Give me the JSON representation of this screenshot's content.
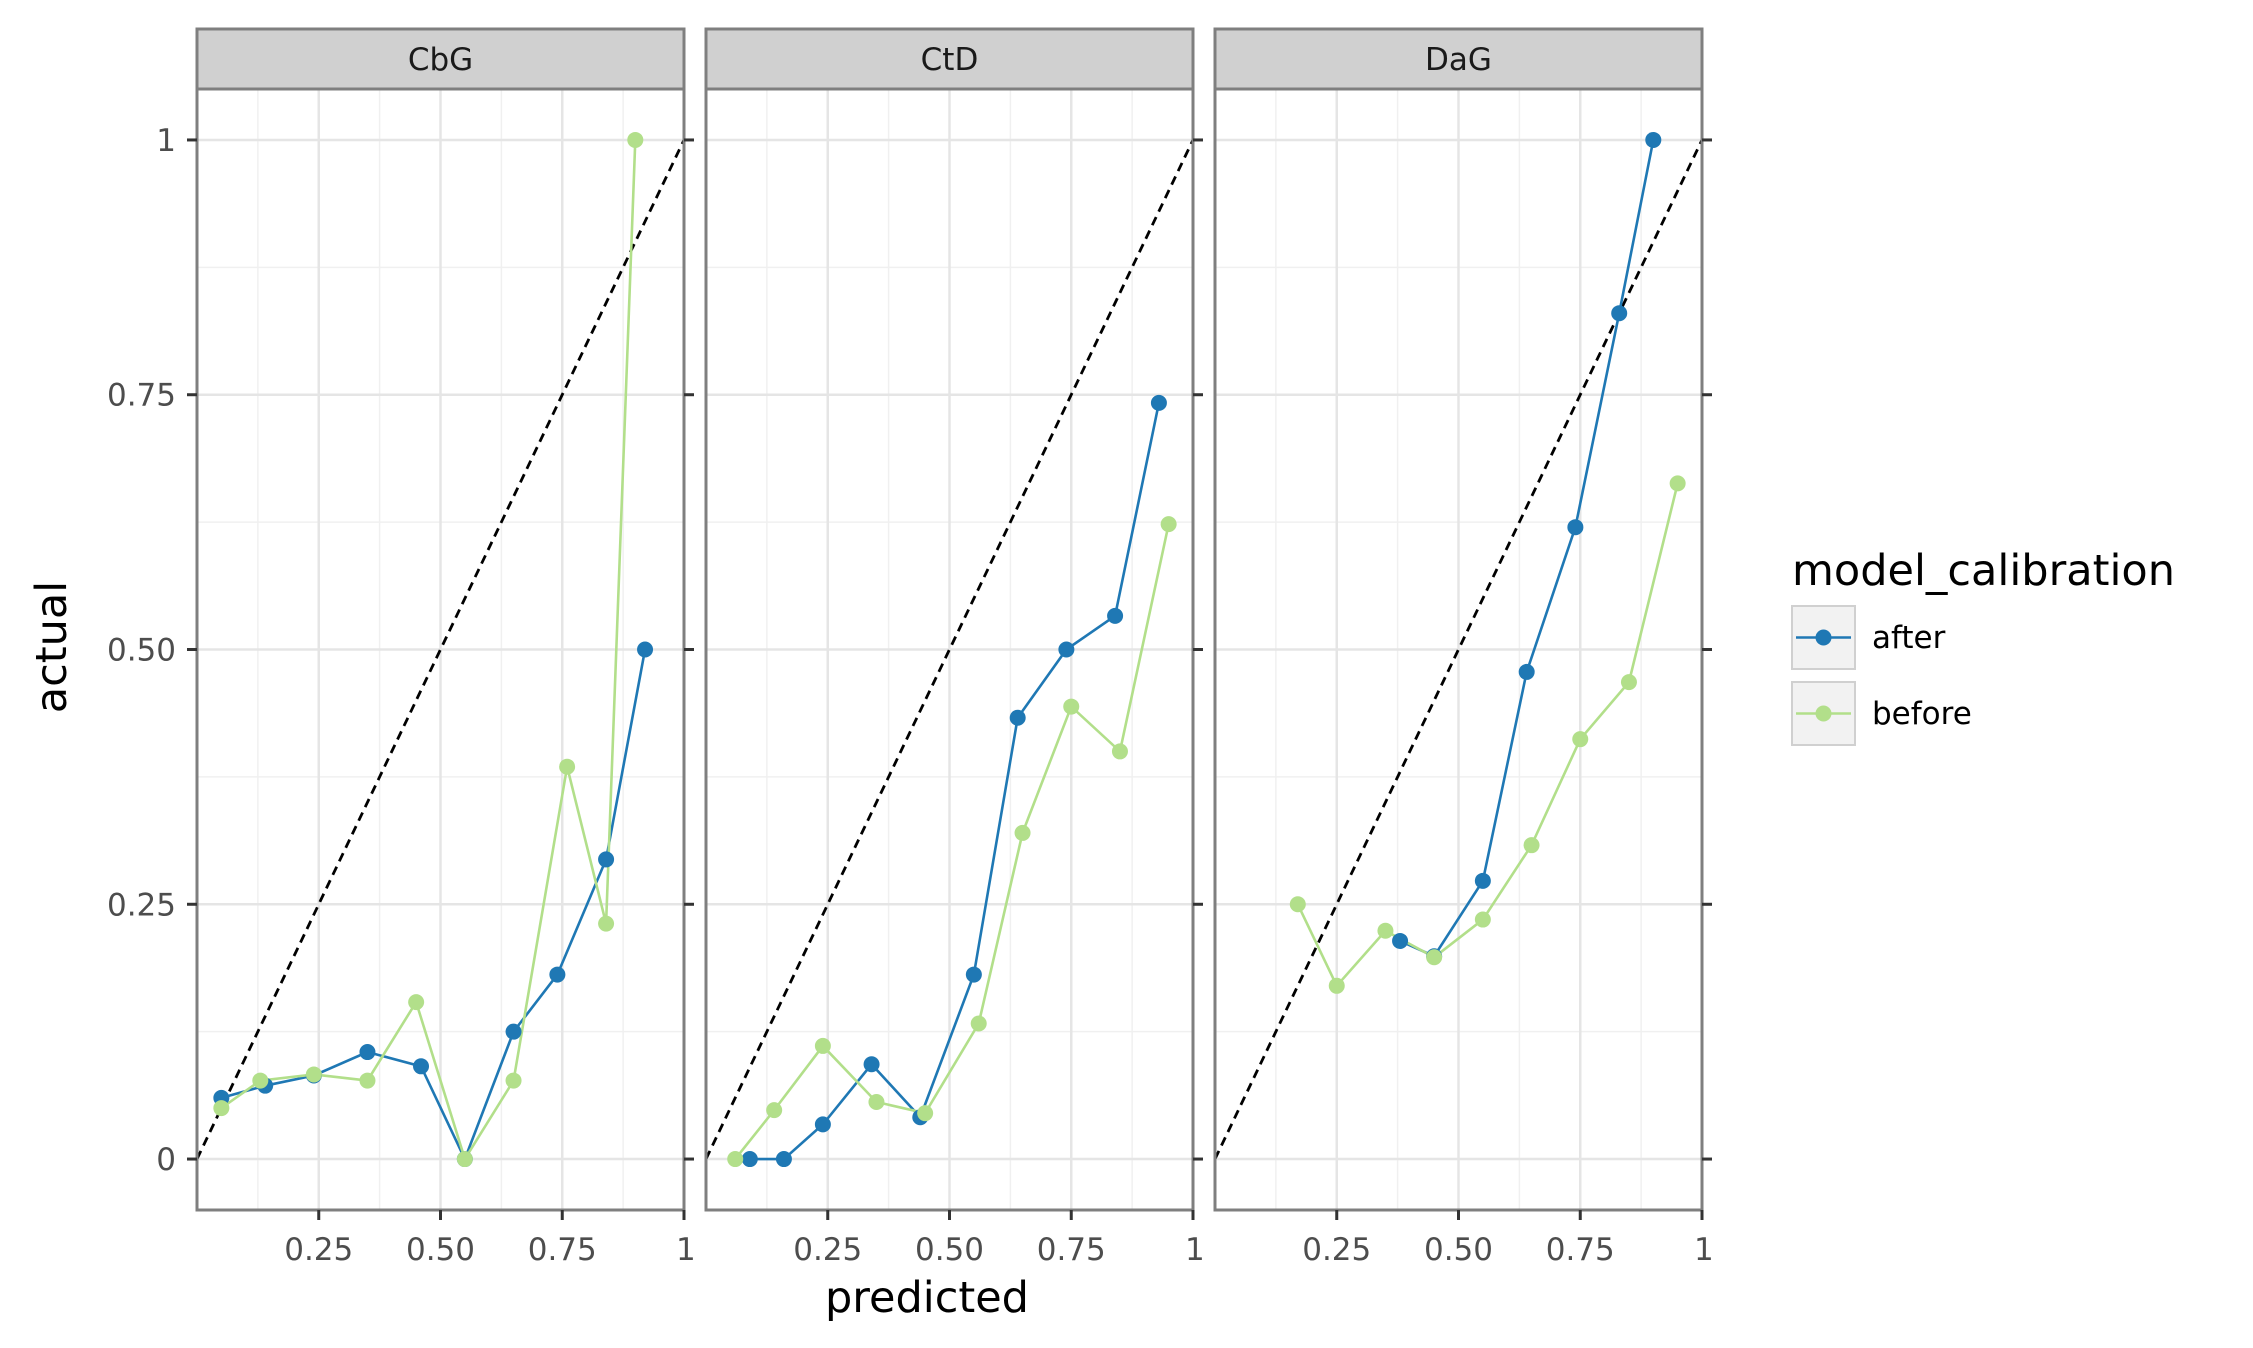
{
  "chart_data": {
    "type": "line",
    "facets": [
      "CbG",
      "CtD",
      "DaG"
    ],
    "xlabel": "predicted",
    "ylabel": "actual",
    "xlim": [
      0,
      1
    ],
    "ylim": [
      -0.05,
      1.05
    ],
    "x_ticks": [
      0.25,
      0.5,
      0.75,
      1
    ],
    "x_tick_labels": [
      "0.25",
      "0.50",
      "0.75",
      "1"
    ],
    "y_ticks": [
      0,
      0.25,
      0.5,
      0.75,
      1
    ],
    "y_tick_labels": [
      "0",
      "0.25",
      "0.50",
      "0.75",
      "1"
    ],
    "reference_line": {
      "style": "dashed",
      "from": [
        0,
        0
      ],
      "to": [
        1,
        1
      ]
    },
    "grid": true,
    "legend": {
      "title": "model_calibration",
      "position": "right",
      "entries": [
        {
          "label": "after",
          "color": "#1f78b4"
        },
        {
          "label": "before",
          "color": "#b2df8a"
        }
      ]
    },
    "panels": [
      {
        "facet": "CbG",
        "series": [
          {
            "name": "after",
            "color": "#1f78b4",
            "x": [
              0.05,
              0.14,
              0.24,
              0.35,
              0.46,
              0.55,
              0.65,
              0.74,
              0.84,
              0.92
            ],
            "y": [
              0.06,
              0.072,
              0.082,
              0.105,
              0.091,
              0.0,
              0.125,
              0.181,
              0.294,
              0.5
            ]
          },
          {
            "name": "before",
            "color": "#b2df8a",
            "x": [
              0.05,
              0.13,
              0.24,
              0.35,
              0.45,
              0.55,
              0.65,
              0.76,
              0.84,
              0.9
            ],
            "y": [
              0.05,
              0.077,
              0.083,
              0.077,
              0.154,
              0.0,
              0.077,
              0.385,
              0.231,
              1.0
            ]
          }
        ]
      },
      {
        "facet": "CtD",
        "series": [
          {
            "name": "after",
            "color": "#1f78b4",
            "x": [
              0.09,
              0.16,
              0.24,
              0.34,
              0.44,
              0.55,
              0.64,
              0.74,
              0.84,
              0.93
            ],
            "y": [
              0.0,
              0.0,
              0.034,
              0.093,
              0.041,
              0.181,
              0.433,
              0.5,
              0.533,
              0.742
            ]
          },
          {
            "name": "before",
            "color": "#b2df8a",
            "x": [
              0.06,
              0.14,
              0.24,
              0.35,
              0.45,
              0.56,
              0.65,
              0.75,
              0.85,
              0.95
            ],
            "y": [
              0.0,
              0.048,
              0.111,
              0.056,
              0.045,
              0.133,
              0.32,
              0.444,
              0.4,
              0.623
            ]
          }
        ]
      },
      {
        "facet": "DaG",
        "series": [
          {
            "name": "after",
            "color": "#1f78b4",
            "x": [
              0.38,
              0.45,
              0.55,
              0.64,
              0.74,
              0.83,
              0.9
            ],
            "y": [
              0.214,
              0.199,
              0.273,
              0.478,
              0.62,
              0.83,
              1.0
            ]
          },
          {
            "name": "before",
            "color": "#b2df8a",
            "x": [
              0.17,
              0.25,
              0.35,
              0.45,
              0.55,
              0.65,
              0.75,
              0.85,
              0.95
            ],
            "y": [
              0.25,
              0.17,
              0.224,
              0.198,
              0.235,
              0.308,
              0.412,
              0.468,
              0.663
            ]
          }
        ]
      }
    ]
  }
}
